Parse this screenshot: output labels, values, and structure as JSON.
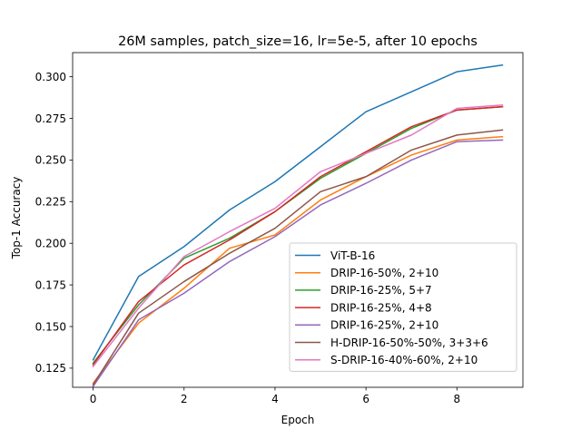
{
  "chart_data": {
    "type": "line",
    "title": "26M samples, patch_size=16, lr=5e-5, after 10 epochs",
    "xlabel": "Epoch",
    "ylabel": "Top-1 Accuracy",
    "xlim": [
      -0.45,
      9.45
    ],
    "ylim": [
      0.1135,
      0.3145
    ],
    "xticks": [
      0,
      2,
      4,
      6,
      8
    ],
    "yticks": [
      0.125,
      0.15,
      0.175,
      0.2,
      0.225,
      0.25,
      0.275,
      0.3
    ],
    "ytick_labels": [
      "0.125",
      "0.150",
      "0.175",
      "0.200",
      "0.225",
      "0.250",
      "0.275",
      "0.300"
    ],
    "grid": false,
    "legend_position": "lower-right",
    "x": [
      0,
      1,
      2,
      3,
      4,
      5,
      6,
      7,
      8,
      9
    ],
    "series": [
      {
        "name": "ViT-B-16",
        "color": "#1f77b4",
        "values": [
          0.13,
          0.18,
          0.198,
          0.22,
          0.237,
          0.258,
          0.279,
          0.291,
          0.303,
          0.307
        ]
      },
      {
        "name": "DRIP-16-50%, 2+10",
        "color": "#ff7f0e",
        "values": [
          0.116,
          0.152,
          0.173,
          0.197,
          0.205,
          0.226,
          0.24,
          0.253,
          0.262,
          0.264
        ]
      },
      {
        "name": "DRIP-16-25%, 5+7",
        "color": "#2ca02c",
        "values": [
          0.128,
          0.163,
          0.191,
          0.203,
          0.219,
          0.239,
          0.254,
          0.269,
          0.28,
          0.282
        ]
      },
      {
        "name": "DRIP-16-25%, 4+8",
        "color": "#d62728",
        "values": [
          0.127,
          0.165,
          0.187,
          0.202,
          0.219,
          0.24,
          0.255,
          0.27,
          0.28,
          0.282
        ]
      },
      {
        "name": "DRIP-16-25%, 2+10",
        "color": "#9467bd",
        "values": [
          0.114,
          0.154,
          0.17,
          0.189,
          0.204,
          0.223,
          0.236,
          0.25,
          0.261,
          0.262
        ]
      },
      {
        "name": "H-DRIP-16-50%-50%, 3+3+6",
        "color": "#8c564b",
        "values": [
          0.115,
          0.158,
          0.177,
          0.194,
          0.209,
          0.231,
          0.24,
          0.256,
          0.265,
          0.268
        ]
      },
      {
        "name": "S-DRIP-16-40%-60%, 2+10",
        "color": "#e377c2",
        "values": [
          0.126,
          0.161,
          0.192,
          0.207,
          0.221,
          0.243,
          0.254,
          0.265,
          0.281,
          0.283
        ]
      }
    ]
  }
}
